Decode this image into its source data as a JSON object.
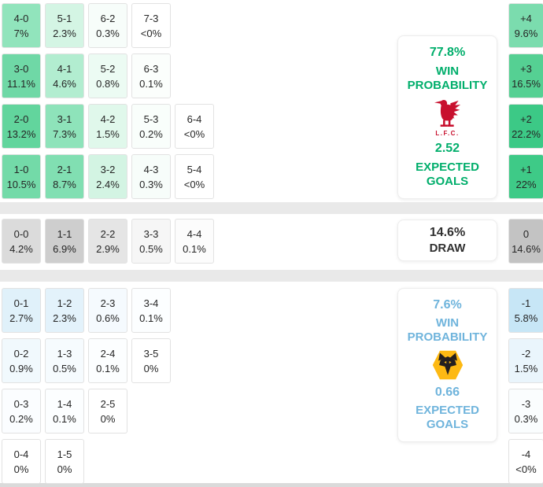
{
  "chart_data": {
    "type": "heatmap",
    "description": "Correct-score probability matrix with win probabilities, expected goals and goal-difference distribution",
    "home": {
      "win_probability_pct": 77.8,
      "expected_goals": 2.52,
      "crest": "liverpool-lfc"
    },
    "draw": {
      "probability_pct": 14.6
    },
    "away": {
      "win_probability_pct": 7.6,
      "expected_goals": 0.66,
      "crest": "wolves"
    },
    "scoreline_probabilities": {
      "home_win": [
        [
          "4-0",
          7
        ],
        [
          "5-1",
          2.3
        ],
        [
          "6-2",
          0.3
        ],
        [
          "7-3",
          "<0"
        ],
        [
          "3-0",
          11.1
        ],
        [
          "4-1",
          4.6
        ],
        [
          "5-2",
          0.8
        ],
        [
          "6-3",
          0.1
        ],
        [
          "2-0",
          13.2
        ],
        [
          "3-1",
          7.3
        ],
        [
          "4-2",
          1.5
        ],
        [
          "5-3",
          0.2
        ],
        [
          "6-4",
          "<0"
        ],
        [
          "1-0",
          10.5
        ],
        [
          "2-1",
          8.7
        ],
        [
          "3-2",
          2.4
        ],
        [
          "4-3",
          0.3
        ],
        [
          "5-4",
          "<0"
        ]
      ],
      "draw": [
        [
          "0-0",
          4.2
        ],
        [
          "1-1",
          6.9
        ],
        [
          "2-2",
          2.9
        ],
        [
          "3-3",
          0.5
        ],
        [
          "4-4",
          0.1
        ]
      ],
      "away_win": [
        [
          "0-1",
          2.7
        ],
        [
          "1-2",
          2.3
        ],
        [
          "2-3",
          0.6
        ],
        [
          "3-4",
          0.1
        ],
        [
          "0-2",
          0.9
        ],
        [
          "1-3",
          0.5
        ],
        [
          "2-4",
          0.1
        ],
        [
          "3-5",
          0
        ],
        [
          "0-3",
          0.2
        ],
        [
          "1-4",
          0.1
        ],
        [
          "2-5",
          0
        ],
        [
          "0-4",
          0
        ],
        [
          "1-5",
          0
        ]
      ]
    },
    "goal_difference_probabilities": [
      [
        "+4",
        9.6
      ],
      [
        "+3",
        16.5
      ],
      [
        "+2",
        22.2
      ],
      [
        "+1",
        22
      ],
      [
        "0",
        14.6
      ],
      [
        "-1",
        5.8
      ],
      [
        "-2",
        1.5
      ],
      [
        "-3",
        0.3
      ],
      [
        "-4",
        "<0"
      ]
    ]
  },
  "ui": {
    "colors": {
      "home_accent": "#00AE6B",
      "away_accent": "#6FB4DC",
      "draw_accent": "#2f2f2f",
      "liverpool_red": "#C8102E",
      "wolves_gold": "#FDB913",
      "wolves_black": "#231F20",
      "divider_gray": "#e9e9e9"
    },
    "panels": {
      "home": {
        "probability": "77.8%",
        "prob_label": "WIN PROBABILITY",
        "goals": "2.52",
        "goals_label": "EXPECTED GOALS",
        "crest_caption": "L.F.C."
      },
      "draw": {
        "probability": "14.6%",
        "label": "DRAW"
      },
      "away": {
        "probability": "7.6%",
        "prob_label": "WIN PROBABILITY",
        "goals": "0.66",
        "goals_label": "EXPECTED GOALS"
      }
    },
    "grid": {
      "home_rows": [
        [
          {
            "s": "4-0",
            "p": "7%",
            "bg": "#91e4bc"
          },
          {
            "s": "5-1",
            "p": "2.3%",
            "bg": "#d4f5e4"
          },
          {
            "s": "6-2",
            "p": "0.3%",
            "bg": "#f7fdfa"
          },
          {
            "s": "7-3",
            "p": "<0%",
            "bg": "#ffffff"
          }
        ],
        [
          {
            "s": "3-0",
            "p": "11.1%",
            "bg": "#6fd8a6"
          },
          {
            "s": "4-1",
            "p": "4.6%",
            "bg": "#b2edd0"
          },
          {
            "s": "5-2",
            "p": "0.8%",
            "bg": "#ecfbf3"
          },
          {
            "s": "6-3",
            "p": "0.1%",
            "bg": "#fbfefc"
          }
        ],
        [
          {
            "s": "2-0",
            "p": "13.2%",
            "bg": "#62d59d"
          },
          {
            "s": "3-1",
            "p": "7.3%",
            "bg": "#8ee3ba"
          },
          {
            "s": "4-2",
            "p": "1.5%",
            "bg": "#e0f8eb"
          },
          {
            "s": "5-3",
            "p": "0.2%",
            "bg": "#f9fefb"
          },
          {
            "s": "6-4",
            "p": "<0%",
            "bg": "#ffffff"
          }
        ],
        [
          {
            "s": "1-0",
            "p": "10.5%",
            "bg": "#73daa8"
          },
          {
            "s": "2-1",
            "p": "8.7%",
            "bg": "#81dfb2"
          },
          {
            "s": "3-2",
            "p": "2.4%",
            "bg": "#d3f4e3"
          },
          {
            "s": "4-3",
            "p": "0.3%",
            "bg": "#f7fdfa"
          },
          {
            "s": "5-4",
            "p": "<0%",
            "bg": "#ffffff"
          }
        ]
      ],
      "draw_row": [
        {
          "s": "0-0",
          "p": "4.2%",
          "bg": "#dbdbdb"
        },
        {
          "s": "1-1",
          "p": "6.9%",
          "bg": "#cecece"
        },
        {
          "s": "2-2",
          "p": "2.9%",
          "bg": "#e5e5e5"
        },
        {
          "s": "3-3",
          "p": "0.5%",
          "bg": "#f6f6f6"
        },
        {
          "s": "4-4",
          "p": "0.1%",
          "bg": "#fcfcfc"
        }
      ],
      "away_rows": [
        [
          {
            "s": "0-1",
            "p": "2.7%",
            "bg": "#e0f1fa"
          },
          {
            "s": "1-2",
            "p": "2.3%",
            "bg": "#e3f2fb"
          },
          {
            "s": "2-3",
            "p": "0.6%",
            "bg": "#f5fafe"
          },
          {
            "s": "3-4",
            "p": "0.1%",
            "bg": "#fcfeff"
          }
        ],
        [
          {
            "s": "0-2",
            "p": "0.9%",
            "bg": "#f1f9fd"
          },
          {
            "s": "1-3",
            "p": "0.5%",
            "bg": "#f6fbfe"
          },
          {
            "s": "2-4",
            "p": "0.1%",
            "bg": "#fcfeff"
          },
          {
            "s": "3-5",
            "p": "0%",
            "bg": "#ffffff"
          }
        ],
        [
          {
            "s": "0-3",
            "p": "0.2%",
            "bg": "#fbfdff"
          },
          {
            "s": "1-4",
            "p": "0.1%",
            "bg": "#fcfeff"
          },
          {
            "s": "2-5",
            "p": "0%",
            "bg": "#ffffff"
          }
        ],
        [
          {
            "s": "0-4",
            "p": "0%",
            "bg": "#ffffff"
          },
          {
            "s": "1-5",
            "p": "0%",
            "bg": "#ffffff"
          }
        ]
      ]
    },
    "goal_diff": {
      "home": [
        {
          "d": "+4",
          "p": "9.6%",
          "bg": "#7bdcae"
        },
        {
          "d": "+3",
          "p": "16.5%",
          "bg": "#55d093"
        },
        {
          "d": "+2",
          "p": "22.2%",
          "bg": "#3cc986"
        },
        {
          "d": "+1",
          "p": "22%",
          "bg": "#3eca87"
        }
      ],
      "draw": {
        "d": "0",
        "p": "14.6%",
        "bg": "#c3c3c3"
      },
      "away": [
        {
          "d": "-1",
          "p": "5.8%",
          "bg": "#c7e6f6"
        },
        {
          "d": "-2",
          "p": "1.5%",
          "bg": "#eaf5fc"
        },
        {
          "d": "-3",
          "p": "0.3%",
          "bg": "#fafdfe"
        },
        {
          "d": "-4",
          "p": "<0%",
          "bg": "#ffffff"
        }
      ]
    }
  }
}
